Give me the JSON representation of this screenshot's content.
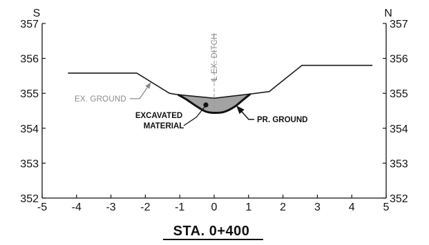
{
  "diagram": {
    "title": "STA. 0+400",
    "direction_left": "S",
    "direction_right": "N",
    "x_axis": {
      "ticks": [
        -5,
        -4,
        -3,
        -2,
        -1,
        0,
        1,
        2,
        3,
        4,
        5
      ],
      "range": [
        -5,
        5
      ]
    },
    "y_axis": {
      "ticks": [
        352,
        353,
        354,
        355,
        356,
        357
      ],
      "range": [
        352,
        357
      ]
    },
    "existing_ground": [
      [
        -4.25,
        355.58
      ],
      [
        -2.25,
        355.58
      ],
      [
        -1.3,
        355.0
      ],
      [
        -1.05,
        354.96
      ],
      [
        0.0,
        354.86
      ],
      [
        1.05,
        354.98
      ],
      [
        1.6,
        355.05
      ],
      [
        2.55,
        355.8
      ],
      [
        4.6,
        355.8
      ]
    ],
    "proposed_ground": [
      [
        -1.05,
        354.96
      ],
      [
        -0.8,
        354.82
      ],
      [
        -0.5,
        354.62
      ],
      [
        -0.25,
        354.48
      ],
      [
        0.0,
        354.44
      ],
      [
        0.3,
        354.47
      ],
      [
        0.6,
        354.62
      ],
      [
        0.85,
        354.82
      ],
      [
        1.05,
        354.98
      ]
    ],
    "labels": {
      "existing_ground": "EX. GROUND",
      "ditch_centerline": "℄ EX. DITCH",
      "excavated_line1": "EXCAVATED",
      "excavated_line2": "MATERIAL",
      "proposed_ground": "PR. GROUND"
    },
    "colors": {
      "ground_line": "#1a1a1a",
      "excavated_fill": "#a3a3a3",
      "axis": "#111111",
      "annotation_gray": "#8a8a8a"
    }
  }
}
